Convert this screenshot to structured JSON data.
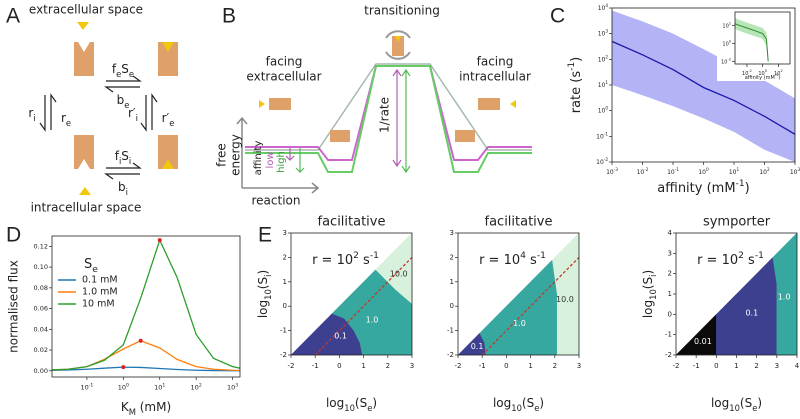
{
  "panel_letters": [
    "A",
    "B",
    "C",
    "D",
    "E"
  ],
  "panel_a": {
    "labels": [
      "extracellular space",
      "intracellular space",
      [
        {
          "text": "f"
        },
        {
          "text": "e",
          "sub": true
        },
        {
          "text": "S"
        },
        {
          "text": "e",
          "sub": true
        }
      ],
      [
        {
          "text": "b"
        },
        {
          "text": "e",
          "sub": true
        }
      ],
      [
        {
          "text": "r"
        },
        {
          "text": "i",
          "sub": true
        }
      ],
      [
        {
          "text": "r"
        },
        {
          "text": "e",
          "sub": true
        }
      ],
      [
        {
          "text": "r′"
        },
        {
          "text": "i",
          "sub": true
        }
      ],
      [
        {
          "text": "r′"
        },
        {
          "text": "e",
          "sub": true
        }
      ],
      [
        {
          "text": "f"
        },
        {
          "text": "i",
          "sub": true
        },
        {
          "text": "S"
        },
        {
          "text": "i",
          "sub": true
        }
      ],
      [
        {
          "text": "b"
        },
        {
          "text": "i",
          "sub": true
        }
      ]
    ]
  },
  "panel_b": {
    "transitioning": "transitioning",
    "facing_out": [
      "facing",
      "extracellular"
    ],
    "facing_in": [
      "facing",
      "intracellular"
    ],
    "inverse_rate": "1/rate",
    "affinity": "affinity",
    "low": "low",
    "high": "high",
    "free_energy": [
      "free",
      "energy"
    ],
    "reaction": "reaction"
  },
  "chart_data": [
    {
      "type": "line",
      "xscale": "log",
      "yscale": "log",
      "xlabel": [
        {
          "text": "affinity (mM"
        },
        {
          "text": "-1",
          "sup": true
        },
        {
          "text": ")"
        }
      ],
      "ylabel": [
        {
          "text": "rate (s"
        },
        {
          "text": "-1",
          "sup": true
        },
        {
          "text": ")"
        }
      ],
      "xlim": [
        0.001,
        1000
      ],
      "ylim": [
        0.01,
        10000
      ],
      "xticks": [
        {
          "value": 0.001,
          "label": [
            {
              "text": "10"
            },
            {
              "text": "-3",
              "sup": true
            }
          ]
        },
        {
          "value": 0.01,
          "label": [
            {
              "text": "10"
            },
            {
              "text": "-2",
              "sup": true
            }
          ]
        },
        {
          "value": 0.1,
          "label": [
            {
              "text": "10"
            },
            {
              "text": "-1",
              "sup": true
            }
          ]
        },
        {
          "value": 1,
          "label": [
            {
              "text": "10"
            },
            {
              "text": "0",
              "sup": true
            }
          ]
        },
        {
          "value": 10,
          "label": [
            {
              "text": "10"
            },
            {
              "text": "1",
              "sup": true
            }
          ]
        },
        {
          "value": 100,
          "label": [
            {
              "text": "10"
            },
            {
              "text": "2",
              "sup": true
            }
          ]
        },
        {
          "value": 1000,
          "label": [
            {
              "text": "10"
            },
            {
              "text": "3",
              "sup": true
            }
          ]
        }
      ],
      "yticks": [
        {
          "value": 0.01,
          "label": [
            {
              "text": "10"
            },
            {
              "text": "-2",
              "sup": true
            }
          ]
        },
        {
          "value": 0.1,
          "label": [
            {
              "text": "10"
            },
            {
              "text": "-1",
              "sup": true
            }
          ]
        },
        {
          "value": 1,
          "label": [
            {
              "text": "10"
            },
            {
              "text": "0",
              "sup": true
            }
          ]
        },
        {
          "value": 10,
          "label": [
            {
              "text": "10"
            },
            {
              "text": "1",
              "sup": true
            }
          ]
        },
        {
          "value": 100,
          "label": [
            {
              "text": "10"
            },
            {
              "text": "2",
              "sup": true
            }
          ]
        },
        {
          "value": 1000,
          "label": [
            {
              "text": "10"
            },
            {
              "text": "3",
              "sup": true
            }
          ]
        },
        {
          "value": 10000,
          "label": [
            {
              "text": "10"
            },
            {
              "text": "4",
              "sup": true
            }
          ]
        }
      ],
      "x": [
        0.001,
        0.01,
        0.1,
        1,
        10,
        100,
        1000
      ],
      "series": [
        {
          "color": "#1a1aa8",
          "band_color": "#9a9af2",
          "values": [
            500,
            150,
            40,
            8,
            2.5,
            0.6,
            0.12
          ],
          "band_upper": [
            8000,
            3000,
            1000,
            250,
            60,
            15,
            3
          ],
          "band_lower": [
            10,
            4,
            1.5,
            0.5,
            0.15,
            0.03,
            0.01
          ]
        }
      ]
    },
    {
      "type": "line",
      "xscale": "log",
      "yscale": "log",
      "xlabel": [
        {
          "text": "affinity (mM"
        },
        {
          "text": "-1",
          "sup": true
        },
        {
          "text": ")"
        }
      ],
      "xlim": [
        0.0003,
        3000
      ],
      "ylim": [
        0.005,
        3000
      ],
      "xticks": [
        {
          "value": 0.01,
          "label": [
            {
              "text": "10"
            },
            {
              "text": "-2",
              "sup": true
            }
          ]
        },
        {
          "value": 1,
          "label": [
            {
              "text": "10"
            },
            {
              "text": "0",
              "sup": true
            }
          ]
        },
        {
          "value": 100,
          "label": [
            {
              "text": "10"
            },
            {
              "text": "2",
              "sup": true
            }
          ]
        }
      ],
      "yticks": [
        {
          "value": 0.01,
          "label": [
            {
              "text": "10"
            },
            {
              "text": "-2",
              "sup": true
            }
          ]
        },
        {
          "value": 1,
          "label": [
            {
              "text": "10"
            },
            {
              "text": "0",
              "sup": true
            }
          ]
        },
        {
          "value": 100,
          "label": [
            {
              "text": "10"
            },
            {
              "text": "2",
              "sup": true
            }
          ]
        }
      ],
      "x": [
        0.0003,
        0.001,
        0.01,
        0.1,
        1,
        3,
        5
      ],
      "series": [
        {
          "color": "#2f8a2f",
          "band_color": "#9fdc9f",
          "values": [
            150,
            100,
            50,
            25,
            12,
            3,
            0.01
          ],
          "band_upper": [
            600,
            400,
            200,
            100,
            50,
            15,
            0.05
          ],
          "band_lower": [
            40,
            25,
            12,
            6,
            3,
            0.5,
            0.005
          ]
        }
      ]
    },
    {
      "type": "line",
      "xscale": "log",
      "xlabel": [
        {
          "text": "K"
        },
        {
          "text": "M",
          "sub": true
        },
        {
          "text": " (mM)"
        }
      ],
      "ylabel": "normalised flux",
      "legend_title": [
        {
          "text": "S"
        },
        {
          "text": "e",
          "sub": true
        }
      ],
      "xlim": [
        0.011,
        1600
      ],
      "ylim": [
        -0.006,
        0.13
      ],
      "xticks": [
        {
          "value": 0.1,
          "label": [
            {
              "text": "10"
            },
            {
              "text": "-1",
              "sup": true
            }
          ]
        },
        {
          "value": 1,
          "label": [
            {
              "text": "10"
            },
            {
              "text": "0",
              "sup": true
            }
          ]
        },
        {
          "value": 10,
          "label": [
            {
              "text": "10"
            },
            {
              "text": "1",
              "sup": true
            }
          ]
        },
        {
          "value": 100,
          "label": [
            {
              "text": "10"
            },
            {
              "text": "2",
              "sup": true
            }
          ]
        },
        {
          "value": 1000,
          "label": [
            {
              "text": "10"
            },
            {
              "text": "3",
              "sup": true
            }
          ]
        }
      ],
      "yticks": [
        {
          "value": 0,
          "label": "0.00"
        },
        {
          "value": 0.02,
          "label": "0.02"
        },
        {
          "value": 0.04,
          "label": "0.04"
        },
        {
          "value": 0.06,
          "label": "0.06"
        },
        {
          "value": 0.08,
          "label": "0.08"
        },
        {
          "value": 0.1,
          "label": "0.10"
        },
        {
          "value": 0.12,
          "label": "0.12"
        }
      ],
      "peak_color": "#e02020",
      "x": [
        0.011,
        0.03,
        0.1,
        0.3,
        1,
        3,
        10,
        30,
        100,
        300,
        1000,
        1600
      ],
      "series": [
        {
          "name": "0.1 mM",
          "color": "#1f77b4",
          "values": [
            0.0004,
            0.0008,
            0.0015,
            0.0025,
            0.0035,
            0.0032,
            0.0022,
            0.0012,
            0.0005,
            0.0002,
            0.0001,
            0.0001
          ],
          "peak": {
            "x": 1,
            "y": 0.0035
          }
        },
        {
          "name": "1.0 mM",
          "color": "#ff7f0e",
          "values": [
            0.0008,
            0.0015,
            0.004,
            0.011,
            0.021,
            0.029,
            0.022,
            0.011,
            0.004,
            0.0015,
            0.0005,
            0.0003
          ],
          "peak": {
            "x": 3,
            "y": 0.029
          }
        },
        {
          "name": "10 mM",
          "color": "#2ca02c",
          "values": [
            0.0008,
            0.0015,
            0.004,
            0.01,
            0.025,
            0.07,
            0.126,
            0.09,
            0.035,
            0.012,
            0.004,
            0.0025
          ],
          "peak": {
            "x": 10,
            "y": 0.126
          }
        }
      ]
    },
    {
      "type": "region",
      "title": "facilitative",
      "annotation": [
        {
          "text": "r = 10"
        },
        {
          "text": "2",
          "sup": true
        },
        {
          "text": " s"
        },
        {
          "text": "-1",
          "sup": true
        }
      ],
      "xlabel": [
        {
          "text": "log"
        },
        {
          "text": "10",
          "sub": true
        },
        {
          "text": "(S"
        },
        {
          "text": "e",
          "sub": true
        },
        {
          "text": ")"
        }
      ],
      "ylabel": [
        {
          "text": "log"
        },
        {
          "text": "10",
          "sub": true
        },
        {
          "text": "(S"
        },
        {
          "text": "i",
          "sub": true
        },
        {
          "text": ")"
        }
      ],
      "xlim": [
        -2,
        3
      ],
      "ylim": [
        -2,
        3
      ],
      "xticks": [
        -2,
        -1,
        0,
        1,
        2,
        3
      ],
      "yticks": [
        -2,
        -1,
        0,
        1,
        2,
        3
      ],
      "reference_line": [
        [
          -1,
          -2
        ],
        [
          3,
          2
        ]
      ],
      "reference_color": "#c0392b",
      "regions": [
        {
          "label": "0.1",
          "color": "#3d3f8f",
          "boundary": [
            [
              -2,
              -2
            ],
            [
              -0.3,
              -0.3
            ],
            [
              0.2,
              -0.5
            ],
            [
              0.6,
              -1
            ],
            [
              0.85,
              -1.5
            ],
            [
              0.95,
              -2
            ]
          ]
        },
        {
          "label": "1.0",
          "color": "#37a89f",
          "boundary": [
            [
              -0.3,
              -0.3
            ],
            [
              1.5,
              1.5
            ],
            [
              2.3,
              0.7
            ],
            [
              3,
              0.1
            ],
            [
              3,
              -2
            ],
            [
              0.95,
              -2
            ],
            [
              0.85,
              -1.5
            ],
            [
              0.6,
              -1
            ],
            [
              0.2,
              -0.5
            ]
          ]
        },
        {
          "label": "10.0",
          "color": "#d8f1dc",
          "label_color": "#333",
          "boundary": [
            [
              1.5,
              1.5
            ],
            [
              3,
              3
            ],
            [
              3,
              0.1
            ],
            [
              2.3,
              0.7
            ]
          ]
        }
      ]
    },
    {
      "type": "region",
      "title": "facilitative",
      "annotation": [
        {
          "text": "r = 10"
        },
        {
          "text": "4",
          "sup": true
        },
        {
          "text": " s"
        },
        {
          "text": "-1",
          "sup": true
        }
      ],
      "xlabel": [
        {
          "text": "log"
        },
        {
          "text": "10",
          "sub": true
        },
        {
          "text": "(S"
        },
        {
          "text": "e",
          "sub": true
        },
        {
          "text": ")"
        }
      ],
      "xlim": [
        -2,
        3
      ],
      "ylim": [
        -2,
        3
      ],
      "xticks": [
        -2,
        -1,
        0,
        1,
        2,
        3
      ],
      "yticks": [
        -2,
        -1,
        0,
        1,
        2,
        3
      ],
      "reference_line": [
        [
          -1,
          -2
        ],
        [
          3,
          2
        ]
      ],
      "reference_color": "#c0392b",
      "regions": [
        {
          "label": "0.1",
          "color": "#3d3f8f",
          "boundary": [
            [
              -2,
              -2
            ],
            [
              -1.1,
              -1.1
            ],
            [
              -0.9,
              -1.5
            ],
            [
              -0.85,
              -2
            ]
          ]
        },
        {
          "label": "1.0",
          "color": "#37a89f",
          "boundary": [
            [
              -1.1,
              -1.1
            ],
            [
              1.9,
              1.9
            ],
            [
              2.1,
              0.5
            ],
            [
              2.1,
              -2
            ],
            [
              -0.85,
              -2
            ],
            [
              -0.9,
              -1.5
            ]
          ]
        },
        {
          "label": "10.0",
          "color": "#d8f1dc",
          "label_color": "#333",
          "boundary": [
            [
              1.9,
              1.9
            ],
            [
              3,
              3
            ],
            [
              3,
              -2
            ],
            [
              2.1,
              -2
            ],
            [
              2.1,
              0.5
            ]
          ]
        }
      ]
    },
    {
      "type": "region",
      "title": "symporter",
      "annotation": [
        {
          "text": "r = 10"
        },
        {
          "text": "2",
          "sup": true
        },
        {
          "text": " s"
        },
        {
          "text": "-1",
          "sup": true
        }
      ],
      "xlabel": [
        {
          "text": "log"
        },
        {
          "text": "10",
          "sub": true
        },
        {
          "text": "(S"
        },
        {
          "text": "e",
          "sub": true
        },
        {
          "text": ")"
        }
      ],
      "ylabel": [
        {
          "text": "log"
        },
        {
          "text": "10",
          "sub": true
        },
        {
          "text": "(S"
        },
        {
          "text": "i",
          "sub": true
        },
        {
          "text": ")"
        }
      ],
      "xlim": [
        -2,
        4
      ],
      "ylim": [
        -2,
        4
      ],
      "xticks": [
        -2,
        -1,
        0,
        1,
        2,
        3,
        4
      ],
      "yticks": [
        -2,
        -1,
        0,
        1,
        2,
        3,
        4
      ],
      "regions": [
        {
          "label": "0.01",
          "color": "#0a0a0a",
          "boundary": [
            [
              -2,
              -2
            ],
            [
              0,
              0
            ],
            [
              0,
              -2
            ]
          ]
        },
        {
          "label": "0.1",
          "color": "#3d3f8f",
          "boundary": [
            [
              0,
              0
            ],
            [
              2.8,
              2.8
            ],
            [
              3,
              1.5
            ],
            [
              3,
              -2
            ],
            [
              0,
              -2
            ]
          ]
        },
        {
          "label": "1.0",
          "color": "#37a89f",
          "boundary": [
            [
              2.8,
              2.8
            ],
            [
              4,
              4
            ],
            [
              4,
              -2
            ],
            [
              3,
              -2
            ],
            [
              3,
              1.5
            ]
          ]
        }
      ]
    }
  ]
}
